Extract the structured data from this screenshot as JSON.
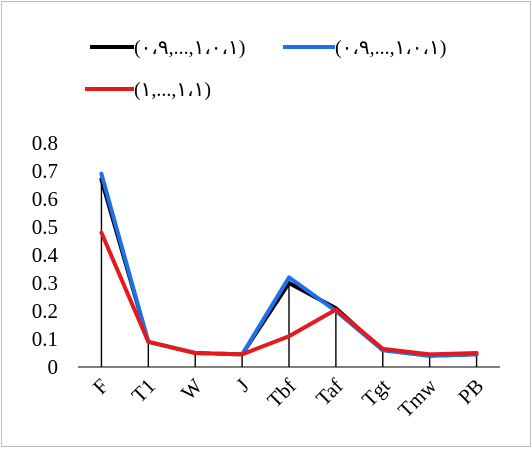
{
  "chart_data": {
    "type": "line",
    "title": "",
    "xlabel": "",
    "ylabel": "",
    "categories": [
      "F",
      "T1",
      "W",
      "J",
      "Tbf",
      "Taf",
      "Tgt",
      "Tmw",
      "PB"
    ],
    "y_ticks": [
      "0",
      "0.1",
      "0.2",
      "0.3",
      "0.4",
      "0.5",
      "0.6",
      "0.7",
      "0.8"
    ],
    "ylim": [
      0,
      0.8
    ],
    "grid": false,
    "legend_position": "top",
    "drop_lines": true,
    "series": [
      {
        "name": "(۰،۹,...,۱،۰،۱)",
        "color": "#000000",
        "values": [
          0.67,
          0.09,
          0.05,
          0.045,
          0.3,
          0.21,
          0.06,
          0.04,
          0.045
        ]
      },
      {
        "name": "(۰،۹,...,۱،۰،۱)",
        "color": "#1f6fe8",
        "values": [
          0.69,
          0.09,
          0.05,
          0.045,
          0.32,
          0.2,
          0.06,
          0.04,
          0.045
        ]
      },
      {
        "name": "(۱,...,۱،۱)",
        "color": "#e41a1c",
        "values": [
          0.48,
          0.09,
          0.05,
          0.045,
          0.11,
          0.205,
          0.065,
          0.045,
          0.05
        ]
      }
    ]
  }
}
